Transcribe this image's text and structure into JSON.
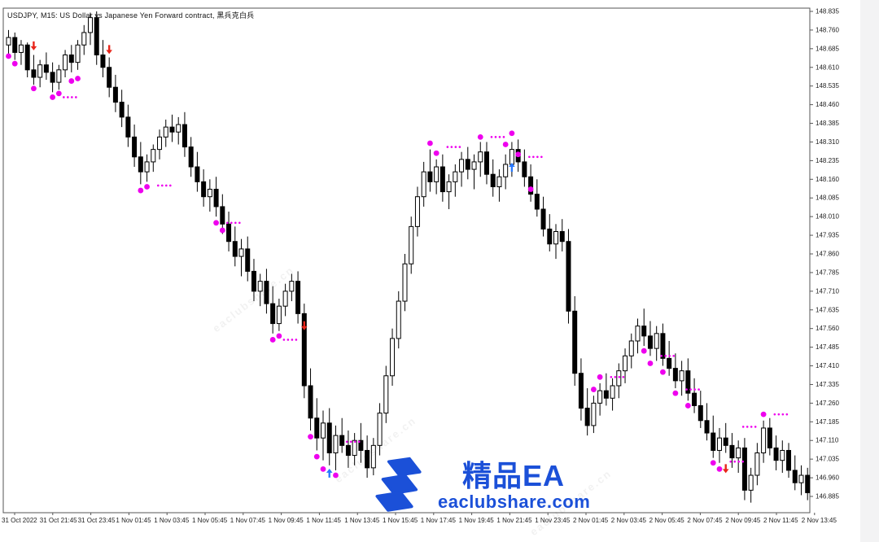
{
  "chart": {
    "title": "USDJPY, M15:  US Dollar vs Japanese Yen Forward contract, 黑兵克白兵"
  },
  "watermark": {
    "brand": "精品EA",
    "site": "eaclubshare.com",
    "brand_color": "#1b50d8",
    "bg_text": "eaclubshare.cn"
  },
  "chart_data": {
    "type": "candlestick",
    "symbol": "USDJPY",
    "timeframe": "M15",
    "title": "USDJPY, M15:  US Dollar vs Japanese Yen Forward contract, 黑兵克白兵",
    "y_axis": {
      "max": 148.835,
      "min": 146.885,
      "step": 0.075,
      "labels": [
        "148.835",
        "148.760",
        "148.685",
        "148.610",
        "148.535",
        "148.460",
        "148.385",
        "148.310",
        "148.235",
        "148.160",
        "148.085",
        "148.010",
        "147.935",
        "147.860",
        "147.785",
        "147.710",
        "147.635",
        "147.560",
        "147.485",
        "147.410",
        "147.335",
        "147.260",
        "147.185",
        "147.110",
        "147.035",
        "146.960",
        "146.885"
      ]
    },
    "x_axis": {
      "labels": [
        "31 Oct 2022",
        "31 Oct 21:45",
        "31 Oct 23:45",
        "1 Nov 01:45",
        "1 Nov 03:45",
        "1 Nov 05:45",
        "1 Nov 07:45",
        "1 Nov 09:45",
        "1 Nov 11:45",
        "1 Nov 13:45",
        "1 Nov 15:45",
        "1 Nov 17:45",
        "1 Nov 19:45",
        "1 Nov 21:45",
        "1 Nov 23:45",
        "2 Nov 01:45",
        "2 Nov 03:45",
        "2 Nov 05:45",
        "2 Nov 07:45",
        "2 Nov 09:45",
        "2 Nov 11:45",
        "2 Nov 13:45"
      ]
    },
    "candles": [
      [
        148.7,
        148.76,
        148.66,
        148.73
      ],
      [
        148.73,
        148.75,
        148.64,
        148.67
      ],
      [
        148.67,
        148.72,
        148.62,
        148.7
      ],
      [
        148.7,
        148.71,
        148.57,
        148.6
      ],
      [
        148.6,
        148.66,
        148.54,
        148.57
      ],
      [
        148.57,
        148.64,
        148.53,
        148.62
      ],
      [
        148.62,
        148.67,
        148.56,
        148.59
      ],
      [
        148.59,
        148.63,
        148.51,
        148.55
      ],
      [
        148.55,
        148.62,
        148.52,
        148.6
      ],
      [
        148.6,
        148.68,
        148.57,
        148.66
      ],
      [
        148.66,
        148.7,
        148.59,
        148.63
      ],
      [
        148.63,
        148.72,
        148.6,
        148.7
      ],
      [
        148.7,
        148.78,
        148.66,
        148.75
      ],
      [
        148.75,
        148.83,
        148.7,
        148.81
      ],
      [
        148.81,
        148.835,
        148.62,
        148.66
      ],
      [
        148.66,
        148.72,
        148.57,
        148.61
      ],
      [
        148.61,
        148.65,
        148.49,
        148.53
      ],
      [
        148.53,
        148.58,
        148.43,
        148.47
      ],
      [
        148.47,
        148.52,
        148.37,
        148.41
      ],
      [
        148.41,
        148.46,
        148.29,
        148.33
      ],
      [
        148.33,
        148.38,
        148.21,
        148.25
      ],
      [
        148.25,
        148.31,
        148.14,
        148.19
      ],
      [
        148.19,
        148.26,
        148.15,
        148.23
      ],
      [
        148.23,
        148.3,
        148.19,
        148.28
      ],
      [
        148.28,
        148.36,
        148.24,
        148.33
      ],
      [
        148.33,
        148.4,
        148.29,
        148.37
      ],
      [
        148.37,
        148.42,
        148.31,
        148.35
      ],
      [
        148.35,
        148.41,
        148.3,
        148.38
      ],
      [
        148.38,
        148.43,
        148.25,
        148.29
      ],
      [
        148.29,
        148.33,
        148.17,
        148.21
      ],
      [
        148.21,
        148.27,
        148.11,
        148.15
      ],
      [
        148.15,
        148.2,
        148.05,
        148.09
      ],
      [
        148.09,
        148.16,
        148.03,
        148.12
      ],
      [
        148.12,
        148.17,
        148.01,
        148.05
      ],
      [
        148.05,
        148.1,
        147.94,
        147.98
      ],
      [
        147.98,
        148.03,
        147.87,
        147.91
      ],
      [
        147.91,
        147.97,
        147.81,
        147.85
      ],
      [
        147.85,
        147.92,
        147.77,
        147.88
      ],
      [
        147.88,
        147.93,
        147.75,
        147.79
      ],
      [
        147.79,
        147.84,
        147.67,
        147.71
      ],
      [
        147.71,
        147.78,
        147.65,
        147.75
      ],
      [
        147.75,
        147.8,
        147.62,
        147.66
      ],
      [
        147.66,
        147.73,
        147.54,
        147.58
      ],
      [
        147.58,
        147.68,
        147.55,
        147.65
      ],
      [
        147.65,
        147.74,
        147.61,
        147.71
      ],
      [
        147.71,
        147.78,
        147.67,
        147.75
      ],
      [
        147.75,
        147.79,
        147.58,
        147.62
      ],
      [
        147.62,
        147.66,
        147.28,
        147.33
      ],
      [
        147.33,
        147.4,
        147.15,
        147.2
      ],
      [
        147.2,
        147.28,
        147.07,
        147.12
      ],
      [
        147.12,
        147.23,
        147.03,
        147.18
      ],
      [
        147.18,
        147.24,
        147.01,
        147.06
      ],
      [
        147.06,
        147.17,
        146.99,
        147.13
      ],
      [
        147.13,
        147.2,
        147.06,
        147.09
      ],
      [
        147.09,
        147.15,
        147.0,
        147.05
      ],
      [
        147.05,
        147.14,
        147.01,
        147.11
      ],
      [
        147.11,
        147.18,
        147.02,
        147.07
      ],
      [
        147.07,
        147.13,
        146.96,
        147.0
      ],
      [
        147.0,
        147.12,
        146.97,
        147.09
      ],
      [
        147.09,
        147.26,
        147.05,
        147.22
      ],
      [
        147.22,
        147.41,
        147.18,
        147.37
      ],
      [
        147.37,
        147.56,
        147.33,
        147.52
      ],
      [
        147.52,
        147.71,
        147.48,
        147.67
      ],
      [
        147.67,
        147.86,
        147.63,
        147.82
      ],
      [
        147.82,
        148.01,
        147.78,
        147.97
      ],
      [
        147.97,
        148.13,
        147.93,
        148.09
      ],
      [
        148.09,
        148.23,
        148.05,
        148.19
      ],
      [
        148.19,
        148.28,
        148.11,
        148.15
      ],
      [
        148.15,
        148.24,
        148.1,
        148.21
      ],
      [
        148.21,
        148.26,
        148.07,
        148.11
      ],
      [
        148.11,
        148.18,
        148.04,
        148.15
      ],
      [
        148.15,
        148.22,
        148.09,
        148.19
      ],
      [
        148.19,
        148.27,
        148.13,
        148.24
      ],
      [
        148.24,
        148.29,
        148.16,
        148.2
      ],
      [
        148.2,
        148.26,
        148.12,
        148.23
      ],
      [
        148.23,
        148.31,
        148.17,
        148.27
      ],
      [
        148.27,
        148.31,
        148.14,
        148.18
      ],
      [
        148.18,
        148.24,
        148.09,
        148.13
      ],
      [
        148.13,
        148.2,
        148.07,
        148.17
      ],
      [
        148.17,
        148.26,
        148.12,
        148.22
      ],
      [
        148.22,
        148.31,
        148.17,
        148.28
      ],
      [
        148.28,
        148.32,
        148.19,
        148.23
      ],
      [
        148.23,
        148.28,
        148.13,
        148.17
      ],
      [
        148.17,
        148.22,
        148.07,
        148.1
      ],
      [
        148.1,
        148.16,
        148.01,
        148.04
      ],
      [
        148.04,
        148.09,
        147.93,
        147.96
      ],
      [
        147.96,
        148.02,
        147.87,
        147.9
      ],
      [
        147.9,
        147.98,
        147.84,
        147.95
      ],
      [
        147.95,
        148.0,
        147.87,
        147.91
      ],
      [
        147.91,
        147.96,
        147.58,
        147.63
      ],
      [
        147.63,
        147.69,
        147.33,
        147.38
      ],
      [
        147.38,
        147.44,
        147.19,
        147.24
      ],
      [
        147.24,
        147.32,
        147.13,
        147.17
      ],
      [
        147.17,
        147.29,
        147.14,
        147.26
      ],
      [
        147.26,
        147.34,
        147.21,
        147.31
      ],
      [
        147.31,
        147.38,
        147.25,
        147.28
      ],
      [
        147.28,
        147.36,
        147.23,
        147.33
      ],
      [
        147.33,
        147.42,
        147.28,
        147.39
      ],
      [
        147.39,
        147.48,
        147.34,
        147.45
      ],
      [
        147.45,
        147.54,
        147.4,
        147.51
      ],
      [
        147.51,
        147.6,
        147.46,
        147.57
      ],
      [
        147.57,
        147.64,
        147.49,
        147.53
      ],
      [
        147.53,
        147.59,
        147.45,
        147.48
      ],
      [
        147.48,
        147.57,
        147.43,
        147.54
      ],
      [
        147.54,
        147.58,
        147.41,
        147.44
      ],
      [
        147.44,
        147.51,
        147.37,
        147.4
      ],
      [
        147.4,
        147.46,
        147.32,
        147.35
      ],
      [
        147.35,
        147.43,
        147.29,
        147.39
      ],
      [
        147.39,
        147.44,
        147.27,
        147.3
      ],
      [
        147.3,
        147.36,
        147.22,
        147.25
      ],
      [
        147.25,
        147.31,
        147.16,
        147.19
      ],
      [
        147.19,
        147.26,
        147.11,
        147.14
      ],
      [
        147.14,
        147.21,
        147.04,
        147.07
      ],
      [
        147.07,
        147.16,
        147.02,
        147.12
      ],
      [
        147.12,
        147.18,
        147.06,
        147.09
      ],
      [
        147.09,
        147.14,
        147.0,
        147.04
      ],
      [
        147.04,
        147.11,
        146.98,
        147.08
      ],
      [
        147.08,
        147.12,
        146.87,
        146.91
      ],
      [
        146.91,
        147.0,
        146.86,
        146.97
      ],
      [
        146.97,
        147.1,
        146.93,
        147.06
      ],
      [
        147.06,
        147.19,
        147.02,
        147.16
      ],
      [
        147.16,
        147.2,
        147.05,
        147.08
      ],
      [
        147.08,
        147.13,
        146.99,
        147.03
      ],
      [
        147.03,
        147.11,
        146.98,
        147.07
      ],
      [
        147.07,
        147.1,
        146.96,
        146.99
      ],
      [
        146.99,
        147.05,
        146.91,
        146.94
      ],
      [
        146.94,
        147.01,
        146.89,
        146.97
      ],
      [
        146.97,
        147.0,
        146.87,
        146.9
      ]
    ],
    "markers": {
      "dots": [
        [
          0,
          148.655
        ],
        [
          1,
          148.625
        ],
        [
          4,
          148.525
        ],
        [
          7,
          148.49
        ],
        [
          8,
          148.505
        ],
        [
          10,
          148.555
        ],
        [
          11,
          148.565
        ],
        [
          21,
          148.115
        ],
        [
          22,
          148.13
        ],
        [
          33,
          147.985
        ],
        [
          34,
          147.955
        ],
        [
          42,
          147.515
        ],
        [
          43,
          147.53
        ],
        [
          48,
          147.125
        ],
        [
          49,
          147.045
        ],
        [
          50,
          146.995
        ],
        [
          52,
          146.97
        ],
        [
          67,
          148.305
        ],
        [
          68,
          148.265
        ],
        [
          75,
          148.33
        ],
        [
          79,
          148.3
        ],
        [
          80,
          148.345
        ],
        [
          81,
          148.26
        ],
        [
          83,
          148.12
        ],
        [
          93,
          147.315
        ],
        [
          94,
          147.365
        ],
        [
          101,
          147.47
        ],
        [
          102,
          147.42
        ],
        [
          104,
          147.385
        ],
        [
          106,
          147.3
        ],
        [
          108,
          147.25
        ],
        [
          112,
          147.02
        ],
        [
          113,
          146.995
        ],
        [
          120,
          147.215
        ]
      ],
      "trails": [
        [
          8,
          148.49
        ],
        [
          23,
          148.135
        ],
        [
          34,
          147.985
        ],
        [
          43,
          147.515
        ],
        [
          53,
          147.105
        ],
        [
          69,
          148.29
        ],
        [
          76,
          148.33
        ],
        [
          82,
          148.25
        ],
        [
          95,
          147.365
        ],
        [
          103,
          147.45
        ],
        [
          107,
          147.315
        ],
        [
          114,
          147.025
        ],
        [
          116,
          147.165
        ],
        [
          121,
          147.215
        ]
      ],
      "arrows_down": [
        [
          4,
          148.685
        ],
        [
          16,
          148.67
        ],
        [
          47,
          147.56
        ],
        [
          114,
          146.985
        ]
      ],
      "arrows_up": [
        [
          51,
          146.99
        ],
        [
          80,
          148.22
        ]
      ]
    },
    "colors": {
      "bull": "#ffffff",
      "bear": "#000000",
      "wick": "#000000",
      "dot": "#ee00ee",
      "arrow_down": "#e8251a",
      "arrow_up": "#2979ff",
      "axis_text": "#222222",
      "frame": "#555555"
    },
    "grid": "off",
    "legend": "none"
  }
}
